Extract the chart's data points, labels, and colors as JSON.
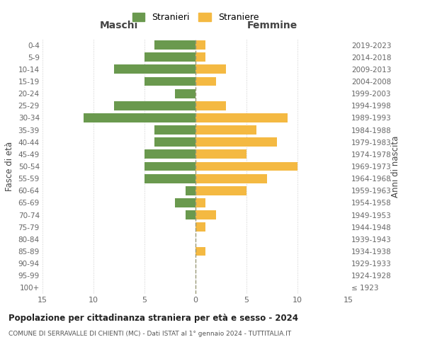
{
  "age_groups": [
    "0-4",
    "5-9",
    "10-14",
    "15-19",
    "20-24",
    "25-29",
    "30-34",
    "35-39",
    "40-44",
    "45-49",
    "50-54",
    "55-59",
    "60-64",
    "65-69",
    "70-74",
    "75-79",
    "80-84",
    "85-89",
    "90-94",
    "95-99",
    "100+"
  ],
  "birth_years": [
    "2019-2023",
    "2014-2018",
    "2009-2013",
    "2004-2008",
    "1999-2003",
    "1994-1998",
    "1989-1993",
    "1984-1988",
    "1979-1983",
    "1974-1978",
    "1969-1973",
    "1964-1968",
    "1959-1963",
    "1954-1958",
    "1949-1953",
    "1944-1948",
    "1939-1943",
    "1934-1938",
    "1929-1933",
    "1924-1928",
    "≤ 1923"
  ],
  "maschi": [
    4,
    5,
    8,
    5,
    2,
    8,
    11,
    4,
    4,
    5,
    5,
    5,
    1,
    2,
    1,
    0,
    0,
    0,
    0,
    0,
    0
  ],
  "femmine": [
    1,
    1,
    3,
    2,
    0,
    3,
    9,
    6,
    8,
    5,
    10,
    7,
    5,
    1,
    2,
    1,
    0,
    1,
    0,
    0,
    0
  ],
  "color_maschi": "#6a994e",
  "color_femmine": "#f4b942",
  "title": "Popolazione per cittadinanza straniera per età e sesso - 2024",
  "subtitle": "COMUNE DI SERRAVALLE DI CHIENTI (MC) - Dati ISTAT al 1° gennaio 2024 - TUTTITALIA.IT",
  "xlabel_left": "Maschi",
  "xlabel_right": "Femmine",
  "ylabel_left": "Fasce di età",
  "ylabel_right": "Anni di nascita",
  "xlim": 15,
  "legend_stranieri": "Stranieri",
  "legend_straniere": "Straniere",
  "background_color": "#ffffff",
  "grid_color": "#cccccc"
}
